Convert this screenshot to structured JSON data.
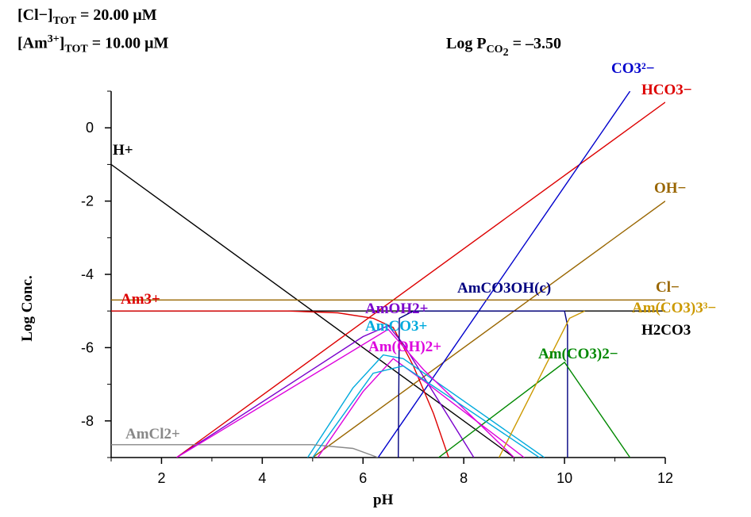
{
  "header": {
    "cl_label": "[Cl−]",
    "cl_sub": "TOT",
    "cl_value": "=   20.00 μM",
    "am_label": "[Am",
    "am_sup": "3+",
    "am_close": "]",
    "am_sub": "TOT",
    "am_value": "=   10.00 μM",
    "pco2_label": "Log P",
    "pco2_sub": "CO",
    "pco2_subsub": "2",
    "pco2_value": " = –3.50"
  },
  "species_labels": {
    "co3": "CO3²−",
    "hco3": "HCO3−",
    "oh": "OH−",
    "h": "H+",
    "am3": "Am3+",
    "amoh": "AmOH2+",
    "amco3": "AmCO3+",
    "amoh2": "Am(OH)2+",
    "amco3ohc": "AmCO3OH(c)",
    "cl": "Cl−",
    "amco3_3": "Am(CO3)3³−",
    "h2co3": "H2CO3",
    "amco3_2": "Am(CO3)2−",
    "amcl": "AmCl2+"
  },
  "chart_data": {
    "type": "line",
    "xlabel": "pH",
    "ylabel": "Log Conc.",
    "xlim": [
      1,
      12
    ],
    "ylim": [
      -9,
      1
    ],
    "x_ticks": [
      2,
      4,
      6,
      8,
      10,
      12
    ],
    "y_ticks": [
      0,
      -2,
      -4,
      -6,
      -8
    ],
    "series": [
      {
        "name": "H+",
        "color": "#000000",
        "points": [
          [
            1,
            -1
          ],
          [
            9,
            -9
          ]
        ]
      },
      {
        "name": "OH−",
        "color": "#996600",
        "points": [
          [
            5,
            -9
          ],
          [
            12,
            -2
          ]
        ]
      },
      {
        "name": "HCO3−",
        "color": "#dd0000",
        "points": [
          [
            2.3,
            -9
          ],
          [
            12,
            0.7
          ]
        ]
      },
      {
        "name": "CO3²−",
        "color": "#0000cc",
        "points": [
          [
            6.3,
            -9
          ],
          [
            11.3,
            1
          ]
        ]
      },
      {
        "name": "H2CO3",
        "color": "#000000",
        "points": [
          [
            1,
            -5
          ],
          [
            12,
            -5
          ]
        ]
      },
      {
        "name": "Cl−",
        "color": "#996600",
        "points": [
          [
            1,
            -4.7
          ],
          [
            12,
            -4.7
          ]
        ]
      },
      {
        "name": "Am3+",
        "color": "#dd0000",
        "points": [
          [
            1,
            -5.0
          ],
          [
            4.5,
            -5.0
          ],
          [
            5.5,
            -5.05
          ],
          [
            6.2,
            -5.2
          ],
          [
            6.6,
            -5.45
          ],
          [
            7.0,
            -6.5
          ],
          [
            7.4,
            -7.8
          ],
          [
            7.7,
            -9
          ]
        ]
      },
      {
        "name": "AmOH2+",
        "color": "#7a00cc",
        "points": [
          [
            2.3,
            -9
          ],
          [
            6.0,
            -5.7
          ],
          [
            6.5,
            -5.4
          ],
          [
            6.8,
            -5.9
          ],
          [
            8.2,
            -9
          ]
        ]
      },
      {
        "name": "AmCO3+",
        "color": "#00aadd",
        "points": [
          [
            4.9,
            -9
          ],
          [
            5.8,
            -7.1
          ],
          [
            6.4,
            -6.2
          ],
          [
            6.8,
            -6.3
          ],
          [
            9.6,
            -9
          ]
        ]
      },
      {
        "name": "Am(OH)2+",
        "color": "#dd00dd",
        "points": [
          [
            5.1,
            -9
          ],
          [
            6.0,
            -7.2
          ],
          [
            6.6,
            -6.3
          ],
          [
            7.2,
            -6.9
          ],
          [
            9.2,
            -9
          ]
        ]
      },
      {
        "name": "AmCO3OH(c)",
        "color": "#000080",
        "points": [
          [
            6.7,
            -9
          ],
          [
            6.72,
            -5.2
          ],
          [
            7.0,
            -5.0
          ],
          [
            10.0,
            -5.0
          ],
          [
            10.06,
            -5.4
          ],
          [
            10.06,
            -9
          ]
        ]
      },
      {
        "name": "Am(CO3)2−",
        "color": "#008800",
        "points": [
          [
            7.5,
            -9
          ],
          [
            10.0,
            -6.4
          ],
          [
            11.3,
            -9
          ]
        ]
      },
      {
        "name": "Am(CO3)3³−",
        "color": "#cc9900",
        "points": [
          [
            8.7,
            -9
          ],
          [
            10.1,
            -5.2
          ],
          [
            10.4,
            -5.0
          ]
        ]
      },
      {
        "name": "AmCl2+",
        "color": "#888888",
        "points": [
          [
            1,
            -8.65
          ],
          [
            5.0,
            -8.65
          ],
          [
            5.8,
            -8.75
          ],
          [
            6.3,
            -9
          ]
        ]
      },
      {
        "name": "",
        "color": "#dd00dd",
        "points": [
          [
            2.3,
            -9
          ],
          [
            6.5,
            -5.5
          ],
          [
            7.2,
            -6.6
          ],
          [
            9.0,
            -9
          ]
        ]
      },
      {
        "name": "",
        "color": "#00aadd",
        "points": [
          [
            5.0,
            -9
          ],
          [
            6.2,
            -6.7
          ],
          [
            6.8,
            -6.5
          ],
          [
            9.5,
            -9
          ]
        ]
      }
    ]
  }
}
